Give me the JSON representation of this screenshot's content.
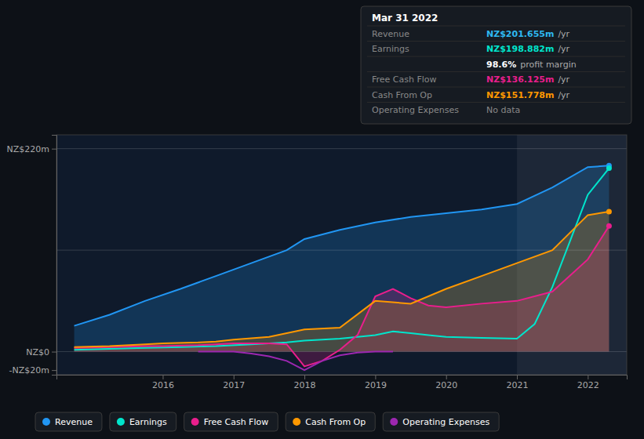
{
  "chart_data": {
    "type": "line",
    "xlim": [
      2014.5,
      2022.55
    ],
    "ylim": [
      -25,
      235
    ],
    "xticks": [
      2016,
      2017,
      2018,
      2019,
      2020,
      2021,
      2022
    ],
    "yticks": [
      {
        "value": -20,
        "label": "-NZ$20m"
      },
      {
        "value": 0,
        "label": "NZ$0"
      },
      {
        "value": 220,
        "label": "NZ$220m"
      }
    ],
    "legend": "bottom",
    "highlight_x": [
      2021.0,
      2022.55
    ],
    "hlines": [
      0,
      110,
      220
    ],
    "series": [
      {
        "name": "Revenue",
        "color": "#2196f3",
        "type": "area",
        "marker": "end",
        "x": [
          2014.75,
          2015.25,
          2015.75,
          2016.25,
          2016.75,
          2017.25,
          2017.75,
          2018.0,
          2018.5,
          2019.0,
          2019.5,
          2020.0,
          2020.5,
          2021.0,
          2021.5,
          2022.0,
          2022.3
        ],
        "values": [
          28,
          40,
          55,
          68,
          82,
          96,
          110,
          122,
          132,
          140,
          146,
          150,
          154,
          160,
          178,
          200,
          201.655
        ]
      },
      {
        "name": "Earnings",
        "color": "#00e5cc",
        "type": "line",
        "marker": "end",
        "x": [
          2014.75,
          2015.25,
          2015.75,
          2016.25,
          2016.75,
          2017.25,
          2017.75,
          2018.0,
          2018.5,
          2019.0,
          2019.25,
          2019.5,
          2019.75,
          2020.0,
          2020.5,
          2021.0,
          2021.25,
          2021.5,
          2021.75,
          2022.0,
          2022.3
        ],
        "values": [
          2,
          3,
          4,
          5,
          6,
          8,
          10,
          12,
          14,
          18,
          22,
          20,
          18,
          16,
          15,
          14,
          30,
          70,
          120,
          170,
          198.882
        ]
      },
      {
        "name": "Free Cash Flow",
        "color": "#e91e8c",
        "type": "area",
        "marker": "end",
        "x": [
          2014.75,
          2015.25,
          2015.75,
          2016.0,
          2016.5,
          2016.75,
          2017.0,
          2017.5,
          2017.75,
          2018.0,
          2018.25,
          2018.5,
          2018.75,
          2019.0,
          2019.25,
          2019.5,
          2019.75,
          2020.0,
          2020.5,
          2021.0,
          2021.5,
          2022.0,
          2022.3
        ],
        "values": [
          4,
          5,
          6,
          6,
          7,
          8,
          9,
          9,
          8,
          -16,
          -10,
          2,
          18,
          60,
          68,
          58,
          50,
          48,
          52,
          55,
          65,
          100,
          136.125
        ]
      },
      {
        "name": "Cash From Op",
        "color": "#ff9800",
        "type": "area",
        "marker": "end",
        "x": [
          2014.75,
          2015.25,
          2015.75,
          2016.0,
          2016.5,
          2016.75,
          2017.0,
          2017.5,
          2017.75,
          2018.0,
          2018.5,
          2019.0,
          2019.5,
          2020.0,
          2020.5,
          2021.0,
          2021.5,
          2022.0,
          2022.3
        ],
        "values": [
          5,
          6,
          8,
          9,
          10,
          11,
          13,
          16,
          20,
          24,
          26,
          55,
          52,
          68,
          82,
          96,
          110,
          148,
          151.778
        ]
      },
      {
        "name": "Operating Expenses",
        "color": "#9c27b0",
        "type": "line",
        "x": [
          2016.5,
          2017.0,
          2017.25,
          2017.5,
          2017.75,
          2018.0,
          2018.25,
          2018.5,
          2018.75,
          2019.0,
          2019.25
        ],
        "values": [
          0,
          0,
          -2,
          -5,
          -10,
          -20,
          -10,
          -4,
          -1,
          0,
          0
        ]
      }
    ],
    "annotations": [
      {
        "title": "Mar 31 2022",
        "rows": [
          {
            "label": "Revenue",
            "value": "NZ$201.655m",
            "suffix": "/yr",
            "color": "#2eb8f0"
          },
          {
            "label": "Earnings",
            "value": "NZ$198.882m",
            "suffix": "/yr",
            "color": "#00e5cc"
          },
          {
            "value": "98.6%",
            "suffix": "profit margin",
            "color": "#ffffff"
          },
          {
            "label": "Free Cash Flow",
            "value": "NZ$136.125m",
            "suffix": "/yr",
            "color": "#e91e8c"
          },
          {
            "label": "Cash From Op",
            "value": "NZ$151.778m",
            "suffix": "/yr",
            "color": "#ff9800"
          },
          {
            "label": "Operating Expenses",
            "value": "No data",
            "color": "#888888"
          }
        ]
      }
    ]
  }
}
